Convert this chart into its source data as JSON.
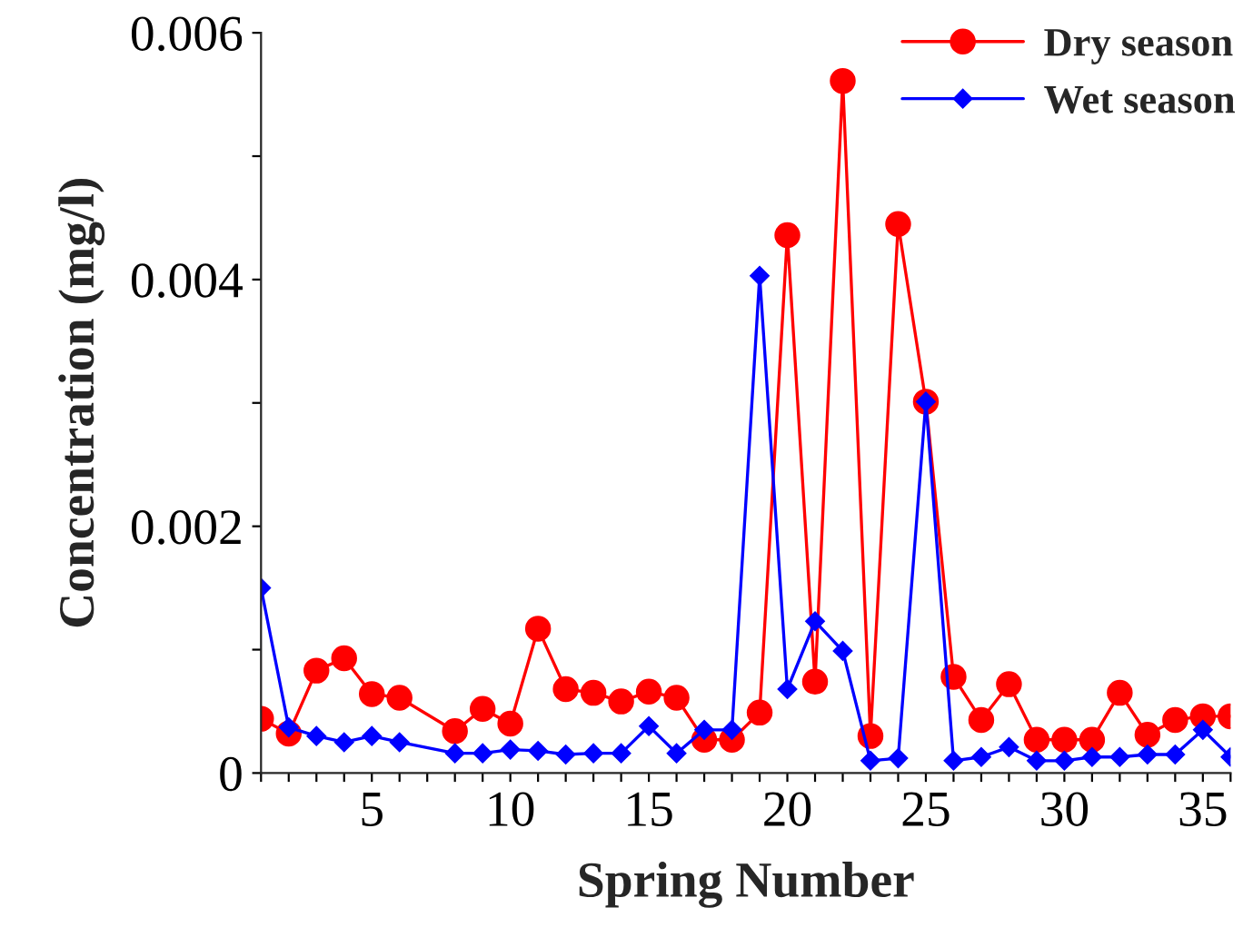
{
  "chart_data": {
    "type": "line",
    "xlabel": "Spring Number",
    "ylabel": "Concentration (mg/l)",
    "xlim": [
      1,
      36
    ],
    "ylim": [
      0,
      0.006
    ],
    "xticks": [
      {
        "value": 1,
        "label": null
      },
      {
        "value": 2,
        "label": null
      },
      {
        "value": 3,
        "label": null
      },
      {
        "value": 4,
        "label": null
      },
      5,
      {
        "value": 6,
        "label": null
      },
      {
        "value": 7,
        "label": null
      },
      {
        "value": 8,
        "label": null
      },
      {
        "value": 9,
        "label": null
      },
      10,
      {
        "value": 11,
        "label": null
      },
      {
        "value": 12,
        "label": null
      },
      {
        "value": 13,
        "label": null
      },
      {
        "value": 14,
        "label": null
      },
      15,
      {
        "value": 16,
        "label": null
      },
      {
        "value": 17,
        "label": null
      },
      {
        "value": 18,
        "label": null
      },
      {
        "value": 19,
        "label": null
      },
      20,
      {
        "value": 21,
        "label": null
      },
      {
        "value": 22,
        "label": null
      },
      {
        "value": 23,
        "label": null
      },
      {
        "value": 24,
        "label": null
      },
      25,
      {
        "value": 26,
        "label": null
      },
      {
        "value": 27,
        "label": null
      },
      {
        "value": 28,
        "label": null
      },
      {
        "value": 29,
        "label": null
      },
      30,
      {
        "value": 31,
        "label": null
      },
      {
        "value": 32,
        "label": null
      },
      {
        "value": 33,
        "label": null
      },
      {
        "value": 34,
        "label": null
      },
      35,
      {
        "value": 36,
        "label": null
      }
    ],
    "yticks": [
      0,
      {
        "value": 0.001,
        "label": null
      },
      0.002,
      {
        "value": 0.003,
        "label": null
      },
      0.004,
      {
        "value": 0.005,
        "label": null
      },
      0.006
    ],
    "grid": false,
    "legend": "top right",
    "line_style": "solid",
    "x": [
      1,
      2,
      3,
      4,
      5,
      6,
      8,
      9,
      10,
      11,
      12,
      13,
      14,
      15,
      16,
      17,
      18,
      19,
      20,
      21,
      22,
      23,
      24,
      25,
      26,
      27,
      28,
      29,
      30,
      31,
      32,
      33,
      34,
      35,
      36
    ],
    "series": [
      {
        "name": "Dry season",
        "color": "#ff0000",
        "marker": "circle",
        "values": [
          0.00044,
          0.00032,
          0.00083,
          0.00093,
          0.00064,
          0.00061,
          0.00034,
          0.00052,
          0.0004,
          0.00117,
          0.00068,
          0.00065,
          0.00058,
          0.00066,
          0.00061,
          0.00027,
          0.00027,
          0.00049,
          0.00436,
          0.00074,
          0.00561,
          0.0003,
          0.00445,
          0.00301,
          0.00078,
          0.00043,
          0.00072,
          0.00027,
          0.00027,
          0.00027,
          0.00065,
          0.00031,
          0.00043,
          0.00046,
          0.00046
        ]
      },
      {
        "name": "Wet season",
        "color": "#0000ff",
        "marker": "diamond",
        "values": [
          0.0015,
          0.00037,
          0.0003,
          0.00025,
          0.0003,
          0.00025,
          0.00016,
          0.00016,
          0.00019,
          0.00018,
          0.00015,
          0.00016,
          0.00016,
          0.00038,
          0.00016,
          0.00035,
          0.00035,
          0.00403,
          0.00068,
          0.00123,
          0.00099,
          0.0001,
          0.00012,
          0.00301,
          0.0001,
          0.00013,
          0.00021,
          0.0001,
          0.0001,
          0.00013,
          0.00013,
          0.00015,
          0.00015,
          0.00035,
          0.00013
        ]
      }
    ]
  }
}
